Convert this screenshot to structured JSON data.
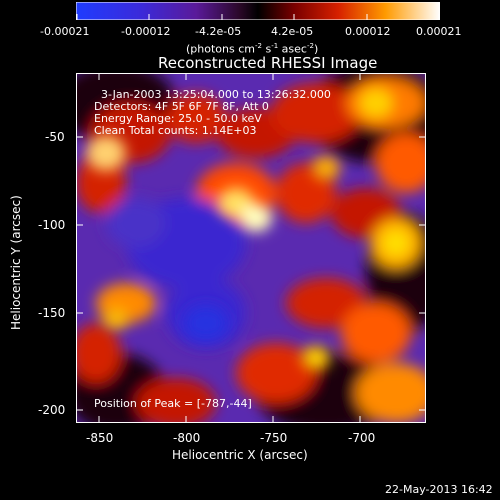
{
  "colorbar": {
    "tick_labels": [
      "-0.00021",
      "-0.00012",
      "-4.2e-05",
      "4.2e-05",
      "0.00012",
      "0.00021"
    ],
    "units_prefix": "(photons cm",
    "units_sup1": "-2",
    "units_mid1": " s",
    "units_sup2": "-1",
    "units_mid2": " asec",
    "units_sup3": "-2",
    "units_suffix": ")"
  },
  "plot": {
    "title": "Reconstructed RHESSI Image",
    "info_lines": [
      "3-Jan-2003 13:25:04.000 to 13:26:32.000",
      "Detectors: 4F 5F 6F 7F 8F, Att 0",
      "Energy Range: 25.0 - 50.0 keV",
      "Clean     Total counts: 1.14E+03"
    ],
    "peak_label": "Position of Peak = [-787,-44]",
    "xlabel": "Heliocentric X (arcsec)",
    "ylabel": "Heliocentric Y (arcsec)",
    "x_ticks": [
      "-850",
      "-800",
      "-750",
      "-700"
    ],
    "y_ticks": [
      "-50",
      "-100",
      "-150",
      "-200"
    ]
  },
  "footer": {
    "timestamp": "22-May-2013 16:42"
  }
}
